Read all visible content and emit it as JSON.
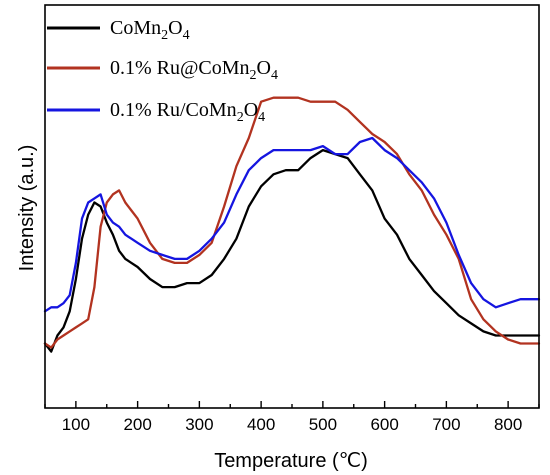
{
  "chart_data": {
    "type": "line",
    "title": "",
    "xlabel": "Temperature (℃)",
    "ylabel": "Intensity (a.u.)",
    "xlim": [
      50,
      850
    ],
    "ylim": [
      0,
      100
    ],
    "xticks": [
      100,
      200,
      300,
      400,
      500,
      600,
      700,
      800
    ],
    "yticks_shown": false,
    "grid": false,
    "legend_position": "top-left",
    "series": [
      {
        "name_parts": {
          "pre": "CoMn",
          "sub1": "2",
          "mid": "O",
          "sub2": "4",
          "post": ""
        },
        "color": "#000000",
        "x": [
          50,
          60,
          70,
          80,
          90,
          100,
          110,
          120,
          130,
          140,
          150,
          160,
          170,
          180,
          190,
          200,
          220,
          240,
          260,
          280,
          300,
          320,
          340,
          360,
          380,
          400,
          420,
          440,
          460,
          480,
          500,
          520,
          540,
          560,
          580,
          600,
          620,
          640,
          660,
          680,
          700,
          720,
          740,
          760,
          780,
          800,
          820,
          850
        ],
        "y": [
          16,
          14,
          18,
          20,
          24,
          32,
          42,
          48,
          51,
          50,
          46,
          43,
          39,
          37,
          36,
          35,
          32,
          30,
          30,
          31,
          31,
          33,
          37,
          42,
          50,
          55,
          58,
          59,
          59,
          62,
          64,
          63,
          62,
          58,
          54,
          47,
          43,
          37,
          33,
          29,
          26,
          23,
          21,
          19,
          18,
          18,
          18,
          18
        ]
      },
      {
        "name_parts": {
          "pre": "0.1% Ru@CoMn",
          "sub1": "2",
          "mid": "O",
          "sub2": "4",
          "post": ""
        },
        "color": "#b23320",
        "x": [
          50,
          60,
          70,
          80,
          90,
          100,
          110,
          120,
          130,
          140,
          150,
          160,
          170,
          180,
          190,
          200,
          220,
          240,
          260,
          280,
          300,
          320,
          340,
          360,
          380,
          400,
          420,
          440,
          460,
          480,
          500,
          520,
          540,
          560,
          580,
          600,
          620,
          640,
          660,
          680,
          700,
          720,
          740,
          760,
          780,
          800,
          820,
          850
        ],
        "y": [
          16,
          15,
          17,
          18,
          19,
          20,
          21,
          22,
          30,
          45,
          51,
          53,
          54,
          51,
          49,
          47,
          41,
          37,
          36,
          36,
          38,
          41,
          50,
          60,
          67,
          76,
          77,
          77,
          77,
          76,
          76,
          76,
          74,
          71,
          68,
          66,
          63,
          58,
          54,
          48,
          43,
          37,
          27,
          22,
          19,
          17,
          16,
          16
        ]
      },
      {
        "name_parts": {
          "pre": "0.1% Ru/CoMn",
          "sub1": "2",
          "mid": "O",
          "sub2": "4",
          "post": ""
        },
        "color": "#1515e0",
        "x": [
          50,
          60,
          70,
          80,
          90,
          100,
          110,
          120,
          130,
          140,
          150,
          160,
          170,
          180,
          190,
          200,
          220,
          240,
          260,
          280,
          300,
          320,
          340,
          360,
          380,
          400,
          420,
          440,
          460,
          480,
          500,
          520,
          540,
          560,
          580,
          600,
          620,
          640,
          660,
          680,
          700,
          720,
          740,
          760,
          780,
          800,
          820,
          850
        ],
        "y": [
          24,
          25,
          25,
          26,
          28,
          36,
          47,
          51,
          52,
          53,
          48,
          46,
          45,
          43,
          42,
          41,
          39,
          38,
          37,
          37,
          39,
          42,
          46,
          53,
          59,
          62,
          64,
          64,
          64,
          64,
          65,
          63,
          63,
          66,
          67,
          64,
          62,
          59,
          56,
          52,
          46,
          38,
          31,
          27,
          25,
          26,
          27,
          27
        ]
      }
    ]
  }
}
